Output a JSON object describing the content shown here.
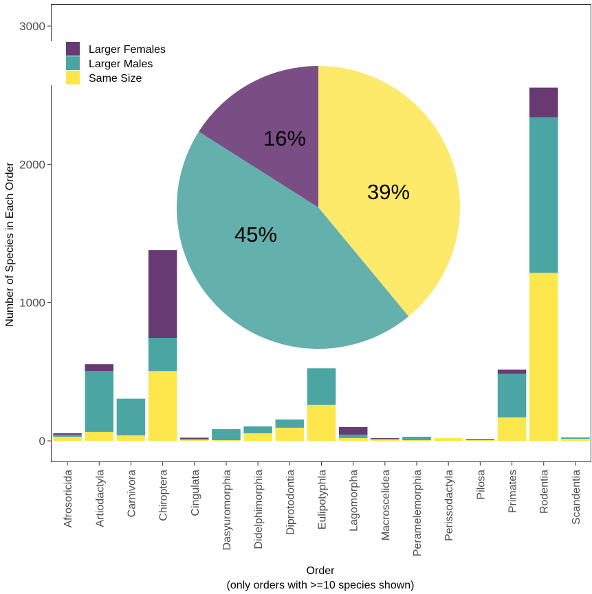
{
  "chart_data": {
    "type": "bar",
    "stacked": true,
    "categories": [
      "Afrosoricida",
      "Artiodactyla",
      "Carnivora",
      "Chiroptera",
      "Cingulata",
      "Dasyuromorphia",
      "Didelphimorphia",
      "Diprotodontia",
      "Eulipotyphla",
      "Lagomorpha",
      "Macroscelidea",
      "Peramelemorphia",
      "Perissodactyla",
      "Pilosa",
      "Primates",
      "Rodentia",
      "Scandentia"
    ],
    "series": [
      {
        "name": "Same Size",
        "color": "#fde74c",
        "values": [
          30,
          65,
          40,
          505,
          8,
          5,
          55,
          95,
          260,
          20,
          10,
          5,
          20,
          5,
          170,
          1215,
          15
        ]
      },
      {
        "name": "Larger Males",
        "color": "#4ba6a3",
        "values": [
          15,
          440,
          265,
          240,
          5,
          80,
          50,
          60,
          265,
          25,
          5,
          25,
          0,
          3,
          315,
          1125,
          10
        ]
      },
      {
        "name": "Larger Females",
        "color": "#673a73",
        "values": [
          10,
          50,
          0,
          635,
          10,
          0,
          0,
          0,
          0,
          55,
          5,
          0,
          0,
          5,
          30,
          215,
          0
        ]
      }
    ],
    "ylim": [
      -150,
      3000
    ],
    "yticks": [
      0,
      1000,
      2000,
      3000
    ],
    "ytick_labels": [
      "0",
      "1000",
      "2000",
      "3000"
    ],
    "ylabel": "Number of Species in Each Order",
    "xlabel_line1": "Order",
    "xlabel_line2": "(only orders with >=10 species shown)",
    "legend": {
      "position": "top-left",
      "entries": [
        {
          "label": "Larger Females",
          "color": "#673a73"
        },
        {
          "label": "Larger Males",
          "color": "#4ba6a3"
        },
        {
          "label": "Same Size",
          "color": "#fde74c"
        }
      ]
    },
    "inset_pie": {
      "slices": [
        {
          "name": "Same Size",
          "percent": 39,
          "label": "39%",
          "color": "#fde96a"
        },
        {
          "name": "Larger Males",
          "percent": 45,
          "label": "45%",
          "color": "#64b0ad"
        },
        {
          "name": "Larger Females",
          "percent": 16,
          "label": "16%",
          "color": "#7a4e85"
        }
      ]
    }
  }
}
